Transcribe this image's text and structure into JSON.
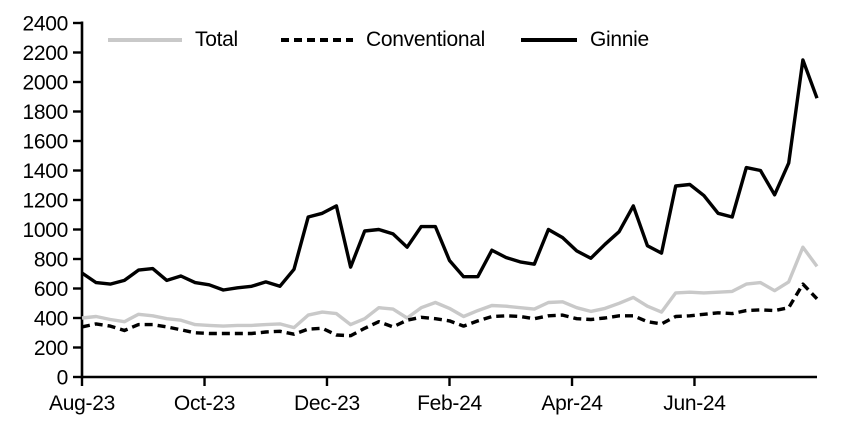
{
  "legend": {
    "items": [
      {
        "label": "Total"
      },
      {
        "label": "Conventional"
      },
      {
        "label": "Ginnie"
      }
    ]
  },
  "colors": {
    "total_line": "#c9c9c9",
    "conventional_line": "#000000",
    "ginnie_line": "#000000",
    "axis": "#000000",
    "background": "#ffffff"
  },
  "chart_data": {
    "type": "line",
    "title": "",
    "xlabel": "",
    "ylabel": "",
    "grid": false,
    "legend_position": "top",
    "x_unit": "weekly",
    "x_range": [
      "Aug-23",
      "Aug-24"
    ],
    "x_tick_labels": [
      "Aug-23",
      "Oct-23",
      "Dec-23",
      "Feb-24",
      "Apr-24",
      "Jun-24"
    ],
    "x_tick_positions": [
      0,
      0.1667,
      0.3333,
      0.5,
      0.6667,
      0.8333
    ],
    "ylim": [
      0,
      2400
    ],
    "y_ticks": [
      0,
      200,
      400,
      600,
      800,
      1000,
      1200,
      1400,
      1600,
      1800,
      2000,
      2200,
      2400
    ],
    "series": [
      {
        "name": "Total",
        "color": "#c9c9c9",
        "dash": null,
        "values": [
          400,
          410,
          390,
          375,
          425,
          415,
          395,
          385,
          355,
          350,
          345,
          350,
          350,
          355,
          360,
          335,
          420,
          440,
          430,
          355,
          395,
          470,
          460,
          400,
          470,
          505,
          465,
          410,
          450,
          485,
          480,
          470,
          460,
          505,
          510,
          470,
          445,
          465,
          500,
          540,
          480,
          440,
          570,
          575,
          570,
          575,
          580,
          630,
          640,
          585,
          645,
          880,
          750
        ]
      },
      {
        "name": "Conventional",
        "color": "#000000",
        "dash": "8 5",
        "values": [
          340,
          360,
          345,
          315,
          355,
          355,
          340,
          320,
          300,
          295,
          295,
          295,
          295,
          305,
          310,
          290,
          325,
          330,
          285,
          280,
          330,
          375,
          340,
          385,
          405,
          395,
          380,
          345,
          380,
          410,
          415,
          410,
          395,
          415,
          420,
          395,
          390,
          400,
          415,
          415,
          375,
          360,
          410,
          415,
          425,
          435,
          430,
          450,
          455,
          450,
          470,
          630,
          530
        ]
      },
      {
        "name": "Ginnie",
        "color": "#000000",
        "dash": null,
        "values": [
          705,
          640,
          630,
          655,
          725,
          735,
          655,
          685,
          640,
          625,
          590,
          605,
          615,
          645,
          615,
          730,
          1085,
          1110,
          1160,
          745,
          990,
          1000,
          970,
          880,
          1020,
          1020,
          790,
          680,
          680,
          860,
          810,
          780,
          765,
          1000,
          945,
          855,
          805,
          900,
          985,
          1160,
          890,
          840,
          1295,
          1305,
          1230,
          1110,
          1085,
          1420,
          1400,
          1235,
          1450,
          2150,
          1890
        ]
      }
    ]
  }
}
